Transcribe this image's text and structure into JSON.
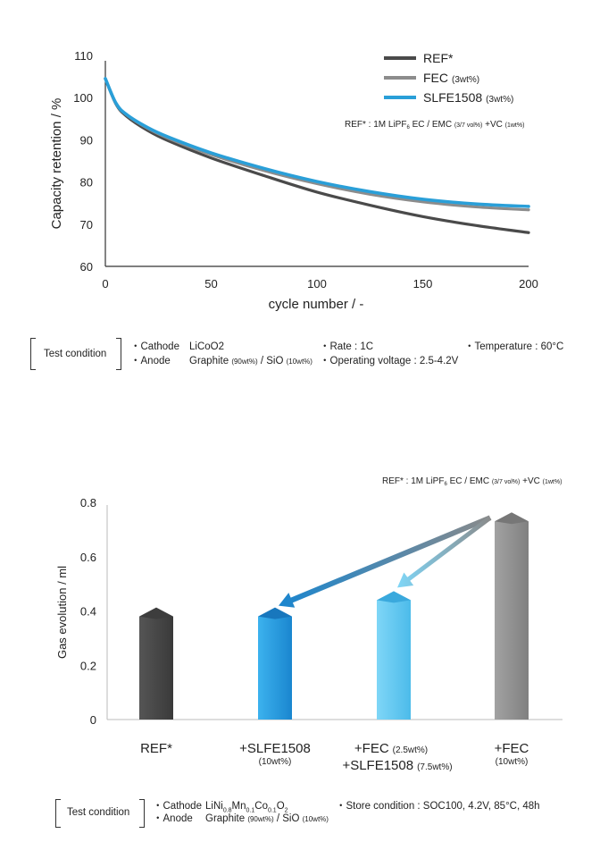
{
  "colors": {
    "ref": "#4a4a4a",
    "fec": "#8c8c8c",
    "slfe": "#2a9fd8",
    "axis": "#333333"
  },
  "chart_data": [
    {
      "type": "line",
      "ylabel": "Capacity retention / %",
      "xlabel": "cycle number / -",
      "xlim": [
        0,
        200
      ],
      "ylim": [
        60,
        110
      ],
      "x_ticks": [
        "0",
        "50",
        "100",
        "150",
        "200"
      ],
      "y_ticks": [
        "110",
        "100",
        "90",
        "80",
        "70",
        "60"
      ],
      "x": [
        0,
        5,
        10,
        20,
        30,
        50,
        75,
        100,
        125,
        150,
        175,
        200
      ],
      "series": [
        {
          "name": "REF*",
          "values": [
            104.5,
            98.5,
            95.6,
            92.2,
            89.7,
            85.7,
            81.5,
            77.6,
            74.5,
            71.8,
            69.7,
            68.0
          ]
        },
        {
          "name": "FEC (3wt%)",
          "values": [
            104.5,
            98.6,
            95.9,
            92.7,
            90.3,
            86.5,
            82.7,
            79.6,
            77.1,
            75.3,
            74.1,
            73.4
          ]
        },
        {
          "name": "SLFE1508 (3wt%)",
          "values": [
            104.5,
            98.7,
            96.0,
            92.9,
            90.6,
            86.9,
            83.2,
            80.1,
            77.7,
            75.9,
            74.8,
            74.2
          ]
        }
      ],
      "legend": [
        "REF*",
        "FEC",
        "(3wt%)",
        "SLFE1508",
        "(3wt%)"
      ],
      "note": "REF* : 1M LiPF6 EC / EMC (3/7 vol%) +VC (1wt%)",
      "legend_position": "top-right"
    },
    {
      "type": "bar",
      "ylabel": "Gas evolution / ml",
      "ylim": [
        0,
        0.8
      ],
      "y_ticks": [
        "0.8",
        "0.6",
        "0.4",
        "0.2",
        "0"
      ],
      "categories": [
        "REF*",
        "+SLFE1508 (10wt%)",
        "+FEC (2.5wt%) +SLFE1508 (7.5wt%)",
        "+FEC (10wt%)"
      ],
      "values": [
        0.38,
        0.38,
        0.44,
        0.73
      ],
      "note": "REF* : 1M LiPF6 EC / EMC (3/7 vol%) +VC (1wt%)",
      "annotations": [
        "arrow from +FEC (10wt%) to +SLFE1508 (10wt%)",
        "arrow from +FEC (10wt%) to +FEC (2.5wt%) +SLFE1508 (7.5wt%)"
      ]
    }
  ],
  "labels": {
    "note1_a": "REF* : 1M LiPF",
    "note1_sub": "6",
    "note1_b": " EC / EMC ",
    "note1_c": "(3/7 vol%)",
    "note1_d": " +VC ",
    "note1_e": "(1wt%)",
    "bar_cat1": "REF*",
    "bar_cat2": "+SLFE1508",
    "bar_cat2_sub": "(10wt%)",
    "bar_cat3_a": "+FEC",
    "bar_cat3_a_sub": "(2.5wt%)",
    "bar_cat3_b": "+SLFE1508",
    "bar_cat3_b_sub": "(7.5wt%)",
    "bar_cat4": "+FEC",
    "bar_cat4_sub": "(10wt%)"
  },
  "conditions1": {
    "title": "Test condition",
    "cathode_label": "・Cathode",
    "cathode_value": "LiCoO2",
    "anode_label": "・Anode",
    "anode_value_a": "Graphite ",
    "anode_value_b": "(90wt%)",
    "anode_value_c": " / SiO ",
    "anode_value_d": "(10wt%)",
    "rate": "・Rate : 1C",
    "voltage": "・Operating voltage : 2.5-4.2V",
    "temperature": "・Temperature : 60°C"
  },
  "conditions2": {
    "title": "Test condition",
    "cathode_label": "・Cathode",
    "cathode_value_a": "LiNi",
    "cathode_sub1": "0.8",
    "cathode_value_b": "Mn",
    "cathode_sub2": "0.1",
    "cathode_value_c": "Co",
    "cathode_sub3": "0.1",
    "cathode_value_d": "O",
    "cathode_sub4": "2",
    "anode_label": "・Anode",
    "anode_value_a": "Graphite ",
    "anode_value_b": "(90wt%)",
    "anode_value_c": " / SiO ",
    "anode_value_d": "(10wt%)",
    "store": "・Store condition : SOC100, 4.2V, 85°C, 48h"
  }
}
